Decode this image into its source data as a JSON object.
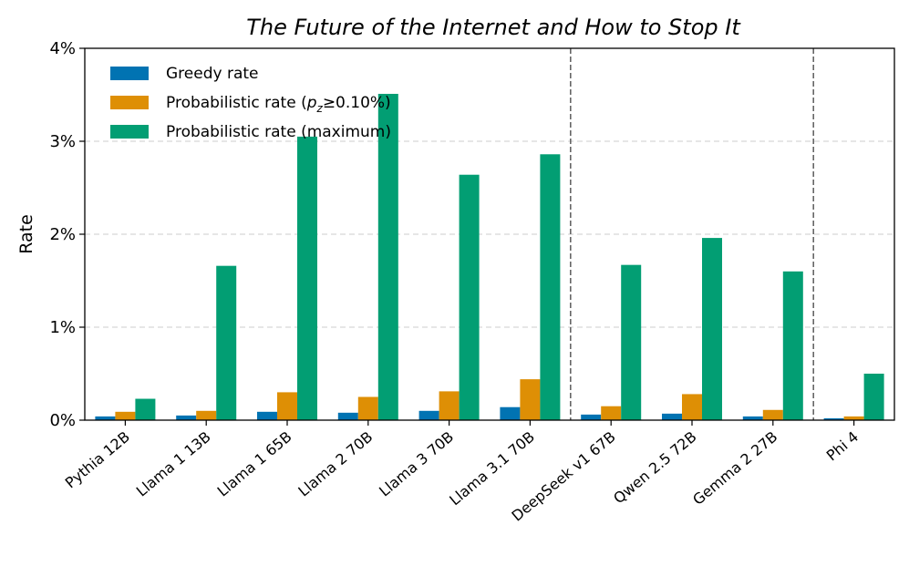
{
  "chart_data": {
    "type": "bar",
    "title": "The Future of the Internet and How to Stop It",
    "xlabel": "",
    "ylabel": "Rate",
    "ylim": [
      0,
      4
    ],
    "y_unit": "%",
    "y_ticks": [
      "0%",
      "1%",
      "2%",
      "3%",
      "4%"
    ],
    "grid": "horizontal dashed",
    "legend_position": "top-left",
    "categories": [
      "Pythia 12B",
      "Llama 1 13B",
      "Llama 1 65B",
      "Llama 2 70B",
      "Llama 3 70B",
      "Llama 3.1 70B",
      "DeepSeek v1 67B",
      "Qwen 2.5 72B",
      "Gemma 2 27B",
      "Phi 4"
    ],
    "group_separators_after": [
      "Llama 3.1 70B",
      "Gemma 2 27B"
    ],
    "series": [
      {
        "name": "Greedy rate",
        "color": "#0173b2",
        "values": [
          0.04,
          0.05,
          0.09,
          0.08,
          0.1,
          0.14,
          0.06,
          0.07,
          0.04,
          0.02
        ]
      },
      {
        "name": "Probabilistic rate (p_z≥0.10%)",
        "color": "#de8f05",
        "values": [
          0.09,
          0.1,
          0.3,
          0.25,
          0.31,
          0.44,
          0.15,
          0.28,
          0.11,
          0.04
        ]
      },
      {
        "name": "Probabilistic rate (maximum)",
        "color": "#029e73",
        "values": [
          0.23,
          1.66,
          3.05,
          3.51,
          2.64,
          2.86,
          1.67,
          1.96,
          1.6,
          0.5
        ]
      }
    ],
    "legend": [
      {
        "prefix": "Greedy rate",
        "sym": "",
        "sub": "",
        "suffix": ""
      },
      {
        "prefix": "Probabilistic rate (",
        "sym": "p",
        "sub": "z",
        "suffix": "≥0.10%)"
      },
      {
        "prefix": "Probabilistic rate (maximum)",
        "sym": "",
        "sub": "",
        "suffix": ""
      }
    ]
  }
}
